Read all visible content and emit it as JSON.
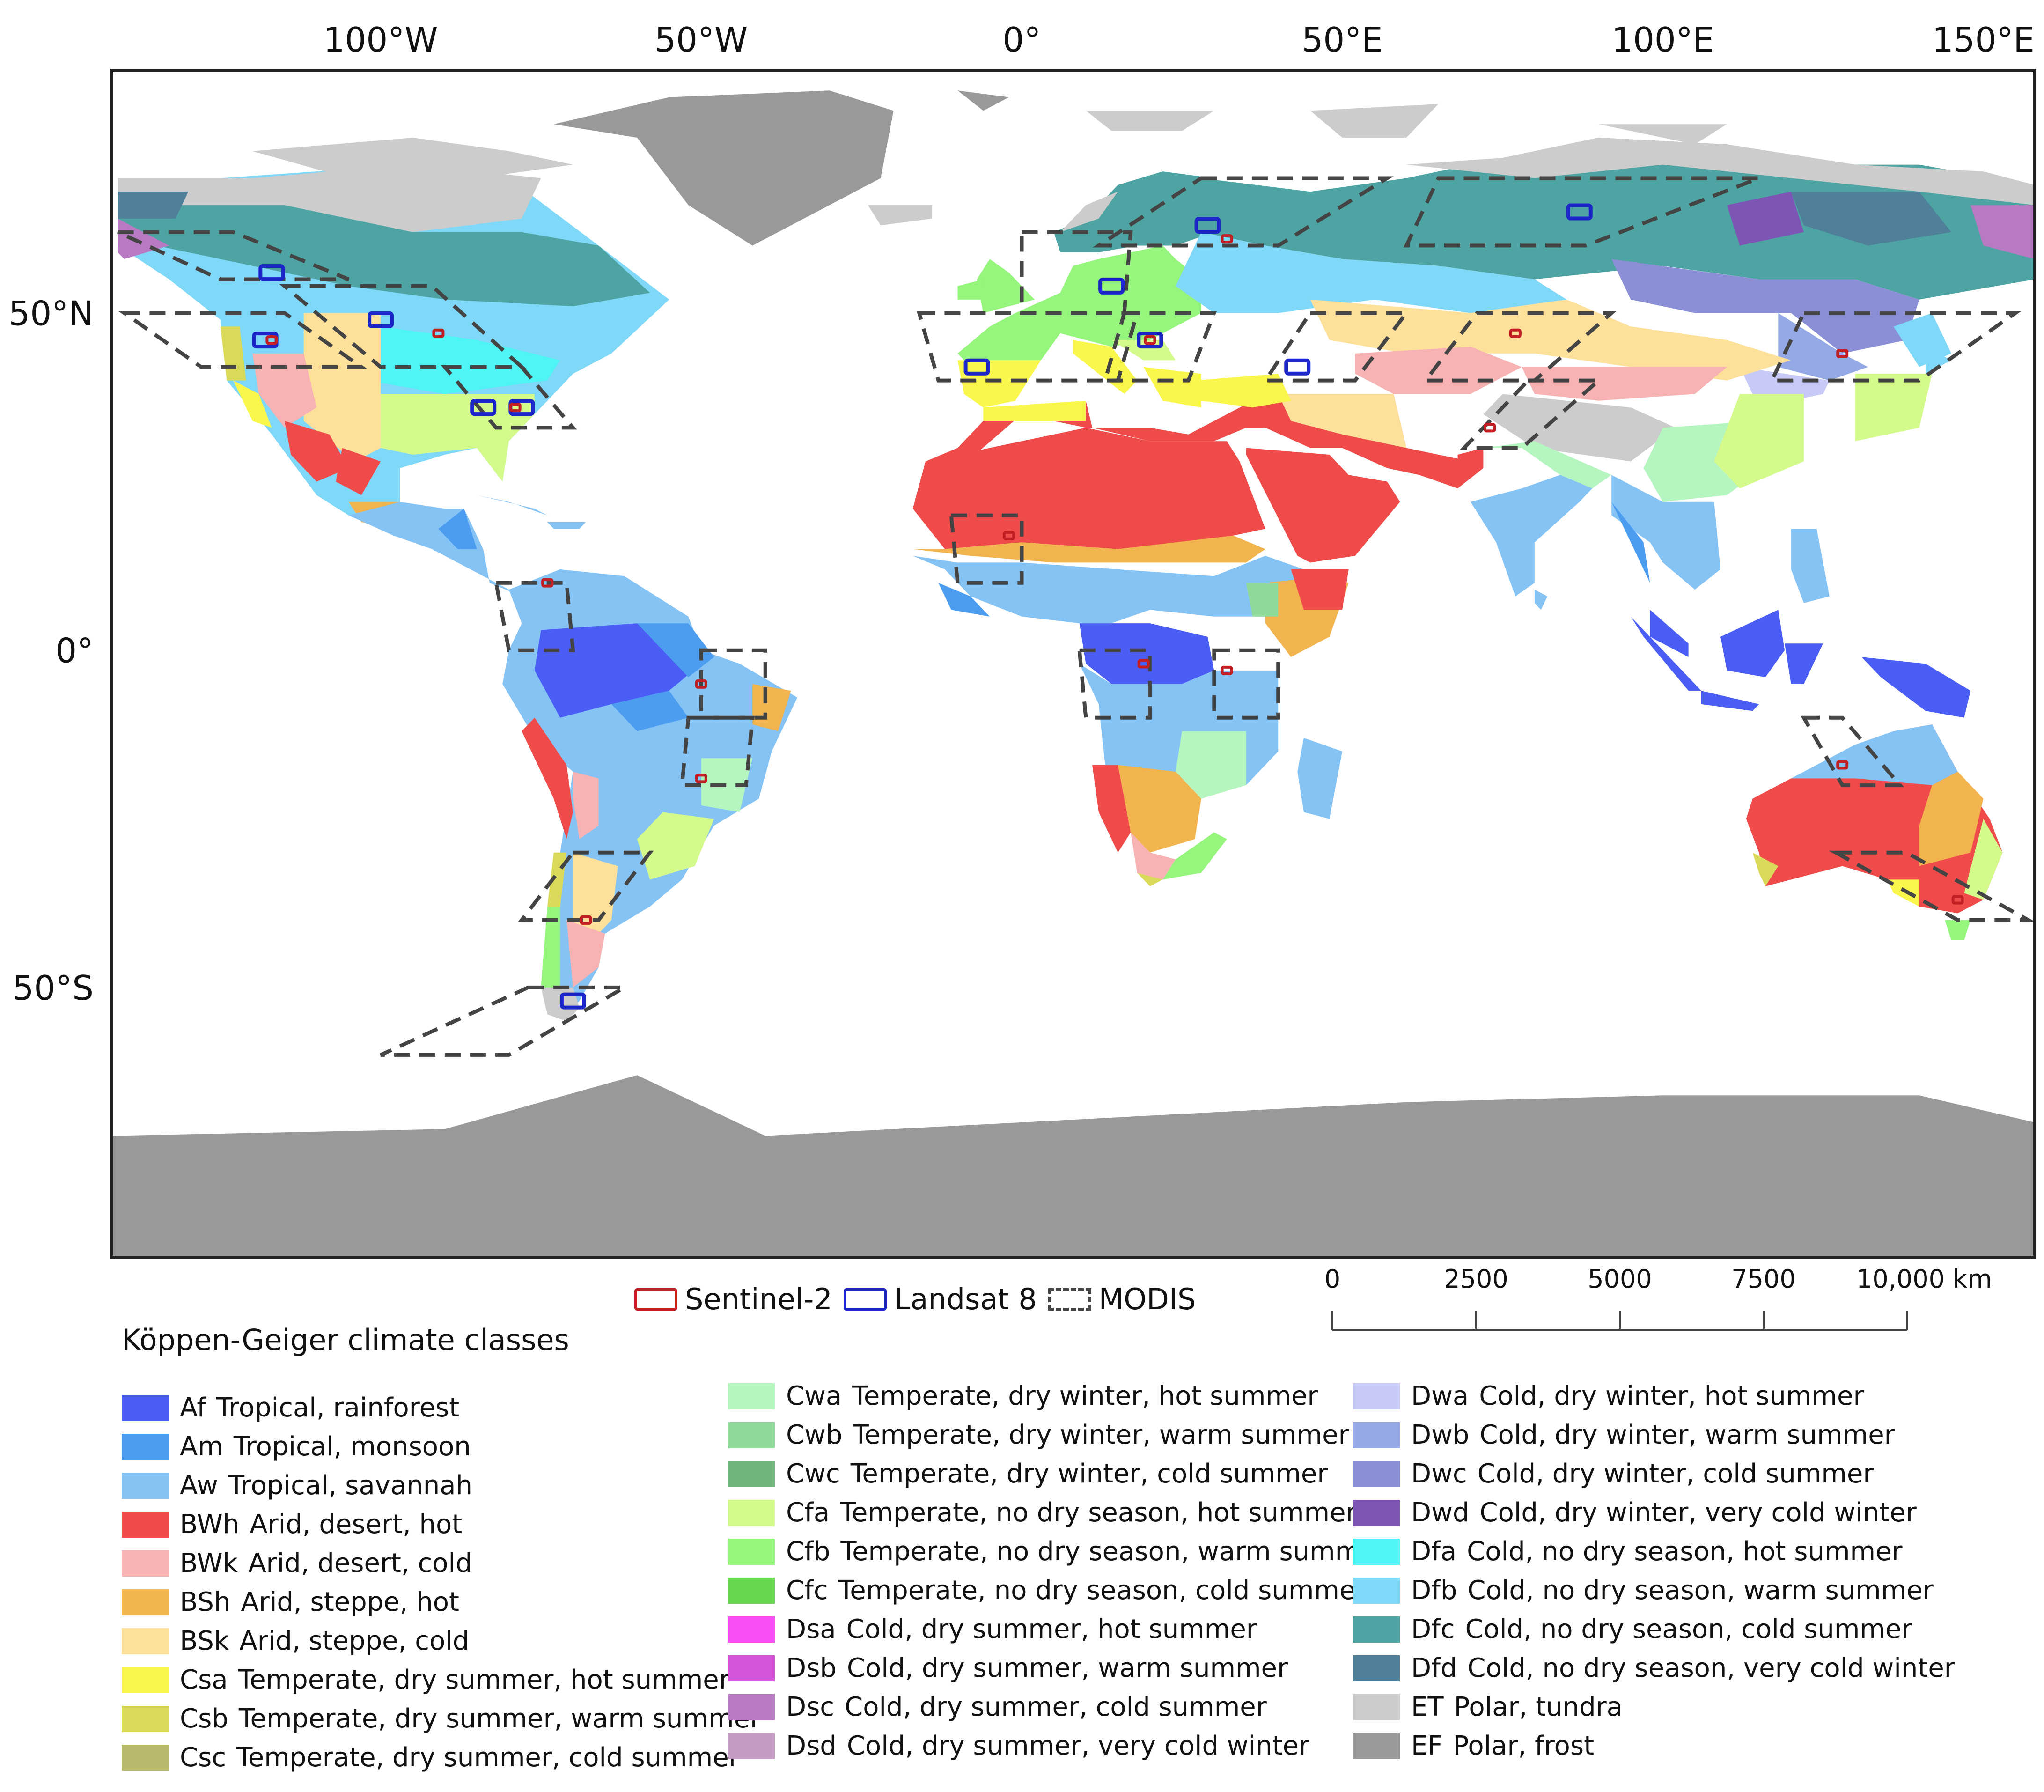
{
  "map": {
    "graticule": {
      "lon_labels": [
        "100°W",
        "50°W",
        "0°",
        "50°E",
        "100°E",
        "150°E"
      ],
      "lon_values": [
        -100,
        -50,
        0,
        50,
        100,
        150
      ],
      "lat_labels": [
        "50°N",
        "0°",
        "50°S"
      ],
      "lat_values": [
        50,
        0,
        -50
      ]
    },
    "extent": {
      "lon": [
        -142,
        158
      ],
      "lat": [
        -90,
        86
      ]
    },
    "colors": {
      "ocean": "#ffffff",
      "frame": "#222222"
    }
  },
  "sources_legend": {
    "items": [
      {
        "label": "Sentinel-2",
        "color": "#c21f24",
        "style": "solid"
      },
      {
        "label": "Landsat 8",
        "color": "#1c25c8",
        "style": "solid"
      },
      {
        "label": "MODIS",
        "color": "#444444",
        "style": "dashed"
      }
    ]
  },
  "scale_bar": {
    "ticks": [
      "0",
      "2500",
      "5000",
      "7500",
      "10,000 km"
    ],
    "values_km": [
      0,
      2500,
      5000,
      7500,
      10000
    ]
  },
  "climate_legend": {
    "title": "Köppen-Geiger climate classes",
    "columns": [
      [
        {
          "code": "Af",
          "label": "Tropical, rainforest",
          "color": "#4a5ef5"
        },
        {
          "code": "Am",
          "label": "Tropical, monsoon",
          "color": "#4c9df0"
        },
        {
          "code": "Aw",
          "label": "Tropical, savannah",
          "color": "#86c3f5"
        },
        {
          "code": "BWh",
          "label": "Arid, desert, hot",
          "color": "#f04b4b"
        },
        {
          "code": "BWk",
          "label": "Arid, desert, cold",
          "color": "#f7b3b3"
        },
        {
          "code": "BSh",
          "label": "Arid, steppe, hot",
          "color": "#f2b44e"
        },
        {
          "code": "BSk",
          "label": "Arid, steppe, cold",
          "color": "#fde09a"
        },
        {
          "code": "Csa",
          "label": "Temperate, dry summer, hot summer",
          "color": "#faf74c"
        },
        {
          "code": "Csb",
          "label": "Temperate, dry summer, warm summer",
          "color": "#dada5a"
        },
        {
          "code": "Csc",
          "label": "Temperate, dry summer, cold summer",
          "color": "#b8b86a"
        }
      ],
      [
        {
          "code": "Cwa",
          "label": "Temperate, dry winter, hot summer",
          "color": "#b5f5bf"
        },
        {
          "code": "Cwb",
          "label": "Temperate, dry winter, warm summer",
          "color": "#8fd99a"
        },
        {
          "code": "Cwc",
          "label": "Temperate, dry winter, cold summer",
          "color": "#6fb57a"
        },
        {
          "code": "Cfa",
          "label": "Temperate, no dry season, hot summer",
          "color": "#d4fa8c"
        },
        {
          "code": "Cfb",
          "label": "Temperate, no dry season, warm summer",
          "color": "#95f57d"
        },
        {
          "code": "Cfc",
          "label": "Temperate, no dry season, cold summer",
          "color": "#65d64e"
        },
        {
          "code": "Dsa",
          "label": "Cold, dry summer, hot summer",
          "color": "#f84cf5"
        },
        {
          "code": "Dsb",
          "label": "Cold, dry summer, warm summer",
          "color": "#d553d8"
        },
        {
          "code": "Dsc",
          "label": "Cold, dry summer, cold summer",
          "color": "#b87ac2"
        },
        {
          "code": "Dsd",
          "label": "Cold, dry summer, very cold winter",
          "color": "#c49bc2"
        }
      ],
      [
        {
          "code": "Dwa",
          "label": "Cold, dry winter, hot summer",
          "color": "#c7c9f7"
        },
        {
          "code": "Dwb",
          "label": "Cold, dry winter, warm summer",
          "color": "#94a9e6"
        },
        {
          "code": "Dwc",
          "label": "Cold, dry winter, cold summer",
          "color": "#8a8fd6"
        },
        {
          "code": "Dwd",
          "label": "Cold, dry winter, very cold winter",
          "color": "#7d55b5"
        },
        {
          "code": "Dfa",
          "label": "Cold, no dry season, hot summer",
          "color": "#4ff5f5"
        },
        {
          "code": "Dfb",
          "label": "Cold, no dry season, warm summer",
          "color": "#80d8f8"
        },
        {
          "code": "Dfc",
          "label": "Cold, no dry season, cold summer",
          "color": "#4ea3a3"
        },
        {
          "code": "Dfd",
          "label": "Cold, no dry season, very cold winter",
          "color": "#4f7f99"
        },
        {
          "code": "ET",
          "label": "Polar, tundra",
          "color": "#cccccc"
        },
        {
          "code": "EF",
          "label": "Polar, frost",
          "color": "#999999"
        }
      ]
    ]
  },
  "regions": {
    "modis": [
      [
        [
          -141,
          62
        ],
        [
          -123,
          62
        ],
        [
          -105,
          55
        ],
        [
          -125,
          55
        ]
      ],
      [
        [
          -140,
          50
        ],
        [
          -115,
          50
        ],
        [
          -103,
          42
        ],
        [
          -128,
          42
        ]
      ],
      [
        [
          -115,
          54
        ],
        [
          -92,
          54
        ],
        [
          -78,
          42
        ],
        [
          -100,
          42
        ]
      ],
      [
        [
          -90,
          42
        ],
        [
          -78,
          42
        ],
        [
          -70,
          33
        ],
        [
          -82,
          33
        ]
      ],
      [
        [
          -82,
          10
        ],
        [
          -71,
          10
        ],
        [
          -70,
          0
        ],
        [
          -80,
          0
        ]
      ],
      [
        [
          -50,
          0
        ],
        [
          -40,
          0
        ],
        [
          -40,
          -10
        ],
        [
          -50,
          -10
        ]
      ],
      [
        [
          -52,
          -10
        ],
        [
          -42,
          -10
        ],
        [
          -43,
          -20
        ],
        [
          -53,
          -20
        ]
      ],
      [
        [
          -70,
          -30
        ],
        [
          -58,
          -30
        ],
        [
          -66,
          -40
        ],
        [
          -78,
          -40
        ]
      ],
      [
        [
          -77,
          -50
        ],
        [
          -62,
          -50
        ],
        [
          -80,
          -60
        ],
        [
          -100,
          -60
        ]
      ],
      [
        [
          -16,
          50
        ],
        [
          18,
          50
        ],
        [
          15,
          40
        ],
        [
          -13,
          40
        ]
      ],
      [
        [
          0,
          62
        ],
        [
          17,
          62
        ],
        [
          16,
          50
        ],
        [
          0,
          50
        ]
      ],
      [
        [
          28,
          70
        ],
        [
          57,
          70
        ],
        [
          40,
          60
        ],
        [
          12,
          60
        ]
      ],
      [
        [
          -11,
          20
        ],
        [
          0,
          20
        ],
        [
          0,
          10
        ],
        [
          -10,
          10
        ]
      ],
      [
        [
          9,
          0
        ],
        [
          20,
          0
        ],
        [
          20,
          -10
        ],
        [
          10,
          -10
        ]
      ],
      [
        [
          30,
          0
        ],
        [
          40,
          0
        ],
        [
          40,
          -10
        ],
        [
          30,
          -10
        ]
      ],
      [
        [
          16,
          50
        ],
        [
          30,
          50
        ],
        [
          26,
          40
        ],
        [
          13,
          40
        ]
      ],
      [
        [
          45,
          50
        ],
        [
          60,
          50
        ],
        [
          52,
          40
        ],
        [
          38,
          40
        ]
      ],
      [
        [
          65,
          70
        ],
        [
          115,
          70
        ],
        [
          88,
          60
        ],
        [
          60,
          60
        ]
      ],
      [
        [
          71,
          50
        ],
        [
          92,
          50
        ],
        [
          80,
          40
        ],
        [
          63,
          40
        ]
      ],
      [
        [
          79,
          40
        ],
        [
          90,
          40
        ],
        [
          78,
          30
        ],
        [
          69,
          30
        ]
      ],
      [
        [
          122,
          50
        ],
        [
          155,
          50
        ],
        [
          140,
          40
        ],
        [
          117,
          40
        ]
      ],
      [
        [
          122,
          -10
        ],
        [
          128,
          -10
        ],
        [
          137,
          -20
        ],
        [
          128,
          -20
        ]
      ],
      [
        [
          127,
          -30
        ],
        [
          138,
          -30
        ],
        [
          157,
          -40
        ],
        [
          146,
          -40
        ]
      ]
    ],
    "landsat": [
      [
        -117,
        56
      ],
      [
        -100,
        49
      ],
      [
        -118,
        46
      ],
      [
        -84,
        36
      ],
      [
        -78,
        36
      ],
      [
        -70,
        -52
      ],
      [
        -7,
        42
      ],
      [
        14,
        54
      ],
      [
        20,
        46
      ],
      [
        29,
        63
      ],
      [
        43,
        42
      ],
      [
        87,
        65
      ]
    ],
    "sentinel": [
      [
        -117,
        46
      ],
      [
        -91,
        47
      ],
      [
        -79,
        36
      ],
      [
        -74,
        10
      ],
      [
        -50,
        -5
      ],
      [
        -50,
        -19
      ],
      [
        -68,
        -40
      ],
      [
        -2,
        17
      ],
      [
        19,
        -2
      ],
      [
        32,
        -3
      ],
      [
        32,
        61
      ],
      [
        20,
        46
      ],
      [
        77,
        47
      ],
      [
        73,
        33
      ],
      [
        128,
        44
      ],
      [
        128,
        -17
      ],
      [
        146,
        -37
      ]
    ]
  }
}
